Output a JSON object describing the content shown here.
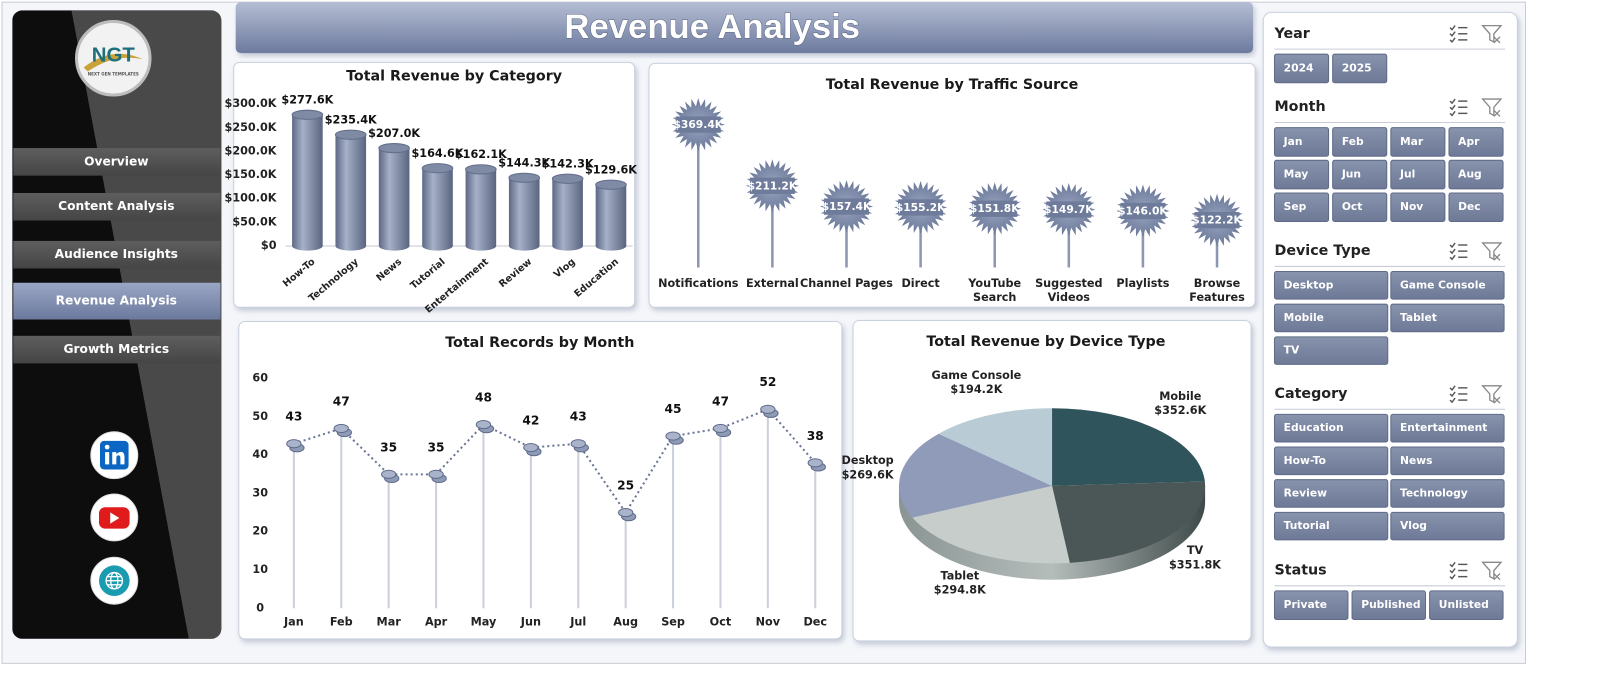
{
  "header": {
    "title": "Revenue Analysis"
  },
  "logo": {
    "text": "NGT",
    "subtext": "NEXT GEN TEMPLATES"
  },
  "nav": {
    "items": [
      "Overview",
      "Content Analysis",
      "Audience Insights",
      "Revenue Analysis",
      "Growth Metrics"
    ],
    "active": 3
  },
  "chart_data": [
    {
      "type": "bar",
      "title": "Total Revenue  by Category",
      "categories": [
        "How-To",
        "Technology",
        "News",
        "Tutorial",
        "Entertainment",
        "Review",
        "Vlog",
        "Education"
      ],
      "values": [
        277.6,
        235.4,
        207.0,
        164.6,
        162.1,
        144.3,
        142.3,
        129.6
      ],
      "value_labels": [
        "$277.6K",
        "$235.4K",
        "$207.0K",
        "$164.6K",
        "$162.1K",
        "$144.3K",
        "$142.3K",
        "$129.6K"
      ],
      "color": "#7f8aa5",
      "ylim": [
        0,
        300
      ],
      "yticks": [
        {
          "value": 0,
          "label": "$0"
        },
        {
          "value": 50,
          "label": "$50.0K"
        },
        {
          "value": 100,
          "label": "$100.0K"
        },
        {
          "value": 150,
          "label": "$150.0K"
        },
        {
          "value": 200,
          "label": "$200.0K"
        },
        {
          "value": 250,
          "label": "$250.0K"
        },
        {
          "value": 300,
          "label": "$300.0K"
        }
      ]
    },
    {
      "type": "lollipop",
      "title": "Total Revenue  by Traffic Source",
      "categories": [
        "Notifications",
        "External",
        "Channel Pages",
        "Direct",
        "YouTube Search",
        "Suggested Videos",
        "Playlists",
        "Browse Features"
      ],
      "values": [
        369.4,
        211.2,
        157.4,
        155.2,
        151.8,
        149.7,
        146.0,
        122.2
      ],
      "value_labels": [
        "$369.4K",
        "$211.2K",
        "$157.4K",
        "$155.2K",
        "$151.8K",
        "$149.7K",
        "$146.0K",
        "$122.2K"
      ],
      "color": "#7d8aa8"
    },
    {
      "type": "line",
      "title": "Total Records by Month",
      "categories": [
        "Jan",
        "Feb",
        "Mar",
        "Apr",
        "May",
        "Jun",
        "Jul",
        "Aug",
        "Sep",
        "Oct",
        "Nov",
        "Dec"
      ],
      "values": [
        43,
        47,
        35,
        35,
        48,
        42,
        43,
        25,
        45,
        47,
        52,
        38
      ],
      "color": "#6b7797",
      "ylim": [
        0,
        60
      ],
      "yticks": [
        0,
        10,
        20,
        30,
        40,
        50,
        60
      ]
    },
    {
      "type": "pie",
      "title": "Total Revenue by Device Type",
      "categories": [
        "Mobile",
        "TV",
        "Tablet",
        "Desktop",
        "Game Console"
      ],
      "values": [
        352.6,
        351.8,
        294.8,
        269.6,
        194.2
      ],
      "value_labels": [
        "$352.6K",
        "$351.8K",
        "$294.8K",
        "$269.6K",
        "$194.2K"
      ],
      "colors": [
        "#2f545c",
        "#4a5756",
        "#c6cdcb",
        "#8f9bb9",
        "#b9ccd5"
      ]
    }
  ],
  "slicers": [
    {
      "title": "Year",
      "items": [
        "2024",
        "2025"
      ]
    },
    {
      "title": "Month",
      "items": [
        "Jan",
        "Feb",
        "Mar",
        "Apr",
        "May",
        "Jun",
        "Jul",
        "Aug",
        "Sep",
        "Oct",
        "Nov",
        "Dec"
      ]
    },
    {
      "title": "Device Type",
      "items": [
        "Desktop",
        "Game Console",
        "Mobile",
        "Tablet",
        "TV"
      ]
    },
    {
      "title": "Category",
      "items": [
        "Education",
        "Entertainment",
        "How-To",
        "News",
        "Review",
        "Technology",
        "Tutorial",
        "Vlog"
      ]
    },
    {
      "title": "Status",
      "items": [
        "Private",
        "Published",
        "Unlisted"
      ]
    }
  ]
}
